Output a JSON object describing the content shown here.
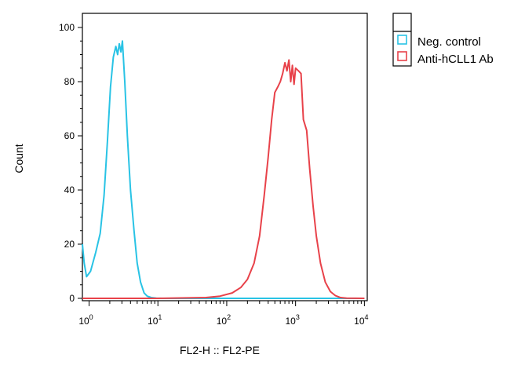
{
  "chart_data": {
    "type": "line",
    "title": "",
    "xlabel": "FL2-H :: FL2-PE",
    "ylabel": "Count",
    "xscale": "log",
    "xlim": [
      0.8,
      11000
    ],
    "ylim": [
      0,
      100
    ],
    "x_ticks": [
      {
        "base": "10",
        "exp": "0"
      },
      {
        "base": "10",
        "exp": "1"
      },
      {
        "base": "10",
        "exp": "2"
      },
      {
        "base": "10",
        "exp": "3"
      },
      {
        "base": "10",
        "exp": "4"
      }
    ],
    "y_ticks": [
      "0",
      "20",
      "40",
      "60",
      "80",
      "100"
    ],
    "grid": false,
    "legend_position": "outside-top-right",
    "series": [
      {
        "name": "Neg. control",
        "color": "#29c3e5",
        "x": [
          0.8,
          0.85,
          0.92,
          1.05,
          1.25,
          1.45,
          1.65,
          1.85,
          2.05,
          2.25,
          2.45,
          2.6,
          2.75,
          2.9,
          3.05,
          3.3,
          3.6,
          4.0,
          4.5,
          5.0,
          5.6,
          6.3,
          7.0,
          8.0,
          9.5,
          12,
          20,
          50,
          100,
          200,
          500,
          1000,
          3000,
          10000
        ],
        "y": [
          20,
          13,
          8,
          10,
          17,
          24,
          38,
          58,
          78,
          89,
          93,
          90,
          94,
          91,
          95,
          80,
          60,
          40,
          25,
          13,
          6,
          2,
          0.8,
          0.3,
          0.1,
          0,
          0,
          0,
          0,
          0,
          0,
          0,
          0,
          0
        ]
      },
      {
        "name": "Anti-hCLL1 Ab",
        "color": "#e8424a",
        "x": [
          0.8,
          10,
          50,
          80,
          120,
          160,
          200,
          250,
          300,
          350,
          400,
          450,
          500,
          550,
          600,
          650,
          700,
          750,
          800,
          850,
          900,
          950,
          1000,
          1100,
          1200,
          1300,
          1450,
          1600,
          1800,
          2000,
          2300,
          2700,
          3200,
          3800,
          4500,
          5500,
          10000
        ],
        "y": [
          0,
          0,
          0.3,
          0.8,
          2,
          4,
          7,
          13,
          23,
          38,
          52,
          66,
          76,
          78,
          80,
          83,
          87,
          84,
          88,
          80,
          86,
          79,
          85,
          84,
          83,
          66,
          62,
          48,
          34,
          23,
          13,
          6,
          2.5,
          1,
          0.3,
          0.1,
          0
        ]
      }
    ]
  }
}
